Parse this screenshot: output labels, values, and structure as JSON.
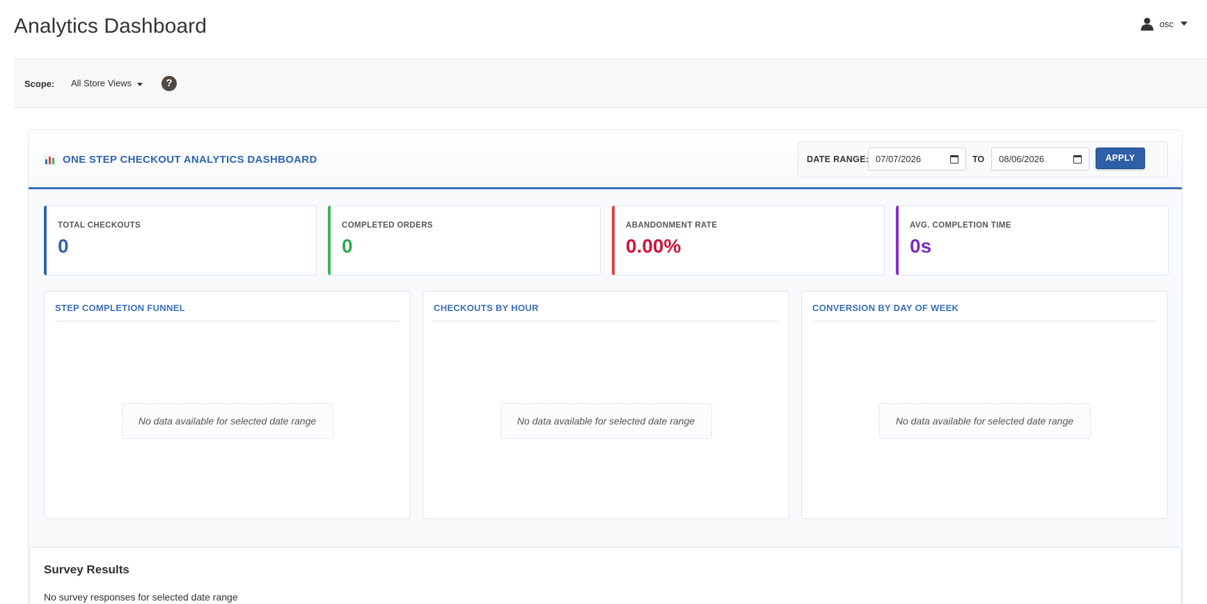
{
  "header": {
    "title": "Analytics Dashboard",
    "user": {
      "name": "osc",
      "icon": "user-icon"
    }
  },
  "scope": {
    "label": "Scope:",
    "selected": "All Store Views",
    "help_icon": "help-icon"
  },
  "dashboard": {
    "title": "ONE STEP CHECKOUT ANALYTICS DASHBOARD",
    "date_range": {
      "label": "DATE RANGE:",
      "from": "07/07/2026",
      "to_label": "TO",
      "to": "08/06/2026",
      "apply_label": "APPLY"
    },
    "stats": [
      {
        "label": "TOTAL CHECKOUTS",
        "value": "0",
        "color": "#2f64b0"
      },
      {
        "label": "COMPLETED ORDERS",
        "value": "0",
        "color": "#2eab4a"
      },
      {
        "label": "ABANDONMENT RATE",
        "value": "0.00%",
        "color": "#d0143a"
      },
      {
        "label": "AVG. COMPLETION TIME",
        "value": "0s",
        "color": "#7b2cbf"
      }
    ],
    "panels": [
      {
        "title": "STEP COMPLETION FUNNEL",
        "empty": "No data available for selected date range"
      },
      {
        "title": "CHECKOUTS BY HOUR",
        "empty": "No data available for selected date range"
      },
      {
        "title": "CONVERSION BY DAY OF WEEK",
        "empty": "No data available for selected date range"
      }
    ]
  },
  "survey": {
    "title": "Survey Results",
    "message": "No survey responses for selected date range"
  },
  "colors": {
    "accent": "#2f64b0",
    "apply_button": "#2f5fa6"
  }
}
